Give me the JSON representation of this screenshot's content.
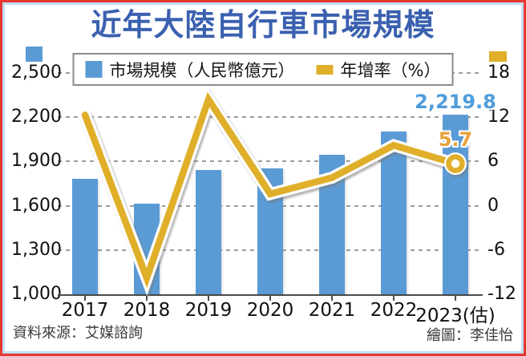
{
  "title": {
    "text": "近年大陸自行車市場規模",
    "color": "#3a60af"
  },
  "annotations": {
    "bar_value_label": "2,219.8",
    "line_value_label": "5.7"
  },
  "footer": {
    "source": "資料來源：艾媒諮詢",
    "credit": "繪圖：李佳怡"
  },
  "colors": {
    "bar": "#5b9bd5",
    "line": "#e0af2a",
    "bar_label": "#4f9cdb",
    "line_label": "#e8a33c",
    "gridline": "#9c9c9c",
    "baseline": "#4d4d4d",
    "frame_outer": "#e6382f",
    "frame_inner": "#c3ddf1"
  },
  "chart_data": {
    "type": "bar+line combo, dual axis",
    "title": "近年大陸自行車市場規模",
    "categories": [
      "2017",
      "2018",
      "2019",
      "2020",
      "2021",
      "2022",
      "2023(估)"
    ],
    "series": [
      {
        "name": "市場規模（人民幣億元）",
        "type": "bar",
        "axis": "left",
        "color": "#5b9bd5",
        "values": [
          1785,
          1612,
          1840,
          1851,
          1945,
          2101,
          2219.8
        ]
      },
      {
        "name": "年增率（%）",
        "type": "line",
        "axis": "right",
        "color": "#e0af2a",
        "values": [
          12.3,
          -9.8,
          14.4,
          1.6,
          3.8,
          8.2,
          5.7
        ]
      }
    ],
    "left_axis": {
      "min": 1000,
      "max": 2500,
      "ticks": [
        1000,
        1300,
        1600,
        1900,
        2200,
        2500
      ],
      "tick_labels": [
        "1,000",
        "1,300",
        "1,600",
        "1,900",
        "2,200",
        "2,500"
      ]
    },
    "right_axis": {
      "min": -12,
      "max": 18,
      "ticks": [
        -12,
        -6,
        0,
        6,
        12,
        18
      ],
      "tick_labels": [
        "-12",
        "-6",
        "0",
        "6",
        "12",
        "18"
      ]
    },
    "grid": true,
    "legend_position": "top",
    "data_labels": {
      "bar_last": "2,219.8",
      "line_last": "5.7"
    }
  }
}
